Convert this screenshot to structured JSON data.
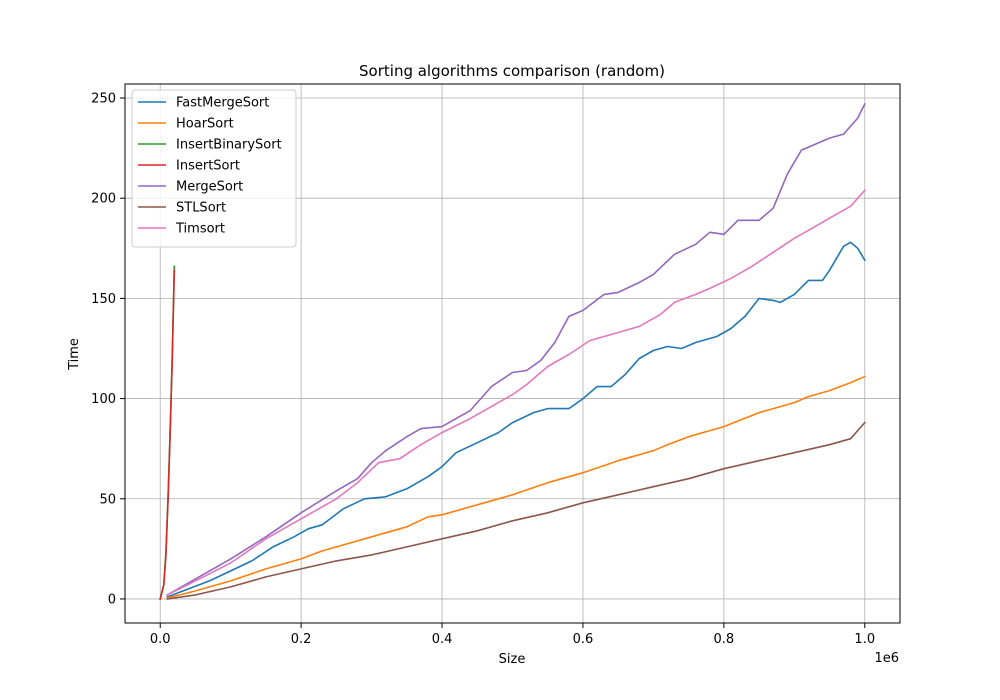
{
  "chart_data": {
    "type": "line",
    "title": "Sorting algorithms comparison (random)",
    "xlabel": "Size",
    "ylabel": "Time",
    "x_offset_label": "1e6",
    "xlim": [
      -50000,
      1050000
    ],
    "ylim": [
      -12,
      257
    ],
    "x_ticks": [
      0,
      200000,
      400000,
      600000,
      800000,
      1000000
    ],
    "x_tick_labels": [
      "0.0",
      "0.2",
      "0.4",
      "0.6",
      "0.8",
      "1.0"
    ],
    "y_ticks": [
      0,
      50,
      100,
      150,
      200,
      250
    ],
    "y_tick_labels": [
      "0",
      "50",
      "100",
      "150",
      "200",
      "250"
    ],
    "grid": true,
    "legend_position": "top-left",
    "series": [
      {
        "name": "FastMergeSort",
        "color": "#1f77b4",
        "points": [
          [
            10000,
            1
          ],
          [
            40000,
            5
          ],
          [
            70000,
            9
          ],
          [
            100000,
            14
          ],
          [
            130000,
            19
          ],
          [
            160000,
            26
          ],
          [
            190000,
            31
          ],
          [
            210000,
            35
          ],
          [
            230000,
            37
          ],
          [
            260000,
            45
          ],
          [
            290000,
            50
          ],
          [
            320000,
            51
          ],
          [
            350000,
            55
          ],
          [
            380000,
            61
          ],
          [
            400000,
            66
          ],
          [
            420000,
            73
          ],
          [
            450000,
            78
          ],
          [
            480000,
            83
          ],
          [
            500000,
            88
          ],
          [
            530000,
            93
          ],
          [
            550000,
            95
          ],
          [
            580000,
            95
          ],
          [
            600000,
            100
          ],
          [
            620000,
            106
          ],
          [
            640000,
            106
          ],
          [
            660000,
            112
          ],
          [
            680000,
            120
          ],
          [
            700000,
            124
          ],
          [
            720000,
            126
          ],
          [
            740000,
            125
          ],
          [
            760000,
            128
          ],
          [
            790000,
            131
          ],
          [
            810000,
            135
          ],
          [
            830000,
            141
          ],
          [
            850000,
            150
          ],
          [
            870000,
            149
          ],
          [
            880000,
            148
          ],
          [
            900000,
            152
          ],
          [
            920000,
            159
          ],
          [
            940000,
            159
          ],
          [
            950000,
            164
          ],
          [
            970000,
            176
          ],
          [
            980000,
            178
          ],
          [
            990000,
            175
          ],
          [
            1000000,
            169
          ]
        ]
      },
      {
        "name": "HoarSort",
        "color": "#ff7f0e",
        "points": [
          [
            10000,
            0.5
          ],
          [
            50000,
            4
          ],
          [
            100000,
            9
          ],
          [
            150000,
            15
          ],
          [
            200000,
            20
          ],
          [
            230000,
            24
          ],
          [
            260000,
            27
          ],
          [
            300000,
            31
          ],
          [
            350000,
            36
          ],
          [
            380000,
            41
          ],
          [
            400000,
            42
          ],
          [
            450000,
            47
          ],
          [
            470000,
            49
          ],
          [
            500000,
            52
          ],
          [
            550000,
            58
          ],
          [
            600000,
            63
          ],
          [
            650000,
            69
          ],
          [
            700000,
            74
          ],
          [
            720000,
            77
          ],
          [
            750000,
            81
          ],
          [
            780000,
            84
          ],
          [
            800000,
            86
          ],
          [
            850000,
            93
          ],
          [
            900000,
            98
          ],
          [
            920000,
            101
          ],
          [
            950000,
            104
          ],
          [
            980000,
            108
          ],
          [
            1000000,
            111
          ]
        ]
      },
      {
        "name": "InsertBinarySort",
        "color": "#2ca02c",
        "points": [
          [
            0,
            0
          ],
          [
            5000,
            7
          ],
          [
            8000,
            23
          ],
          [
            11000,
            50
          ],
          [
            14000,
            83
          ],
          [
            17000,
            120
          ],
          [
            20000,
            166
          ]
        ]
      },
      {
        "name": "InsertSort",
        "color": "#d62728",
        "points": [
          [
            0,
            0
          ],
          [
            5000,
            7
          ],
          [
            8000,
            22
          ],
          [
            11000,
            49
          ],
          [
            14000,
            82
          ],
          [
            17000,
            119
          ],
          [
            20000,
            164
          ]
        ]
      },
      {
        "name": "MergeSort",
        "color": "#9467bd",
        "points": [
          [
            10000,
            2
          ],
          [
            50000,
            10
          ],
          [
            100000,
            20
          ],
          [
            150000,
            31
          ],
          [
            200000,
            43
          ],
          [
            250000,
            54
          ],
          [
            280000,
            60
          ],
          [
            300000,
            68
          ],
          [
            320000,
            74
          ],
          [
            350000,
            81
          ],
          [
            370000,
            85
          ],
          [
            400000,
            86
          ],
          [
            440000,
            94
          ],
          [
            470000,
            106
          ],
          [
            500000,
            113
          ],
          [
            520000,
            114
          ],
          [
            540000,
            119
          ],
          [
            560000,
            128
          ],
          [
            580000,
            141
          ],
          [
            600000,
            144
          ],
          [
            630000,
            152
          ],
          [
            650000,
            153
          ],
          [
            680000,
            158
          ],
          [
            700000,
            162
          ],
          [
            730000,
            172
          ],
          [
            760000,
            177
          ],
          [
            780000,
            183
          ],
          [
            800000,
            182
          ],
          [
            820000,
            189
          ],
          [
            850000,
            189
          ],
          [
            870000,
            195
          ],
          [
            890000,
            212
          ],
          [
            910000,
            224
          ],
          [
            930000,
            227
          ],
          [
            950000,
            230
          ],
          [
            970000,
            232
          ],
          [
            990000,
            240
          ],
          [
            1000000,
            247
          ]
        ]
      },
      {
        "name": "STLSort",
        "color": "#8c564b",
        "points": [
          [
            10000,
            0
          ],
          [
            50000,
            2
          ],
          [
            100000,
            6
          ],
          [
            150000,
            11
          ],
          [
            200000,
            15
          ],
          [
            250000,
            19
          ],
          [
            300000,
            22
          ],
          [
            350000,
            26
          ],
          [
            400000,
            30
          ],
          [
            450000,
            34
          ],
          [
            500000,
            39
          ],
          [
            550000,
            43
          ],
          [
            600000,
            48
          ],
          [
            650000,
            52
          ],
          [
            700000,
            56
          ],
          [
            750000,
            60
          ],
          [
            800000,
            65
          ],
          [
            850000,
            69
          ],
          [
            900000,
            73
          ],
          [
            950000,
            77
          ],
          [
            980000,
            80
          ],
          [
            990000,
            84
          ],
          [
            1000000,
            88
          ]
        ]
      },
      {
        "name": "Timsort",
        "color": "#e377c2",
        "points": [
          [
            10000,
            2
          ],
          [
            50000,
            9
          ],
          [
            100000,
            18
          ],
          [
            150000,
            30
          ],
          [
            200000,
            40
          ],
          [
            250000,
            50
          ],
          [
            280000,
            58
          ],
          [
            310000,
            68
          ],
          [
            340000,
            70
          ],
          [
            370000,
            77
          ],
          [
            400000,
            83
          ],
          [
            440000,
            90
          ],
          [
            470000,
            96
          ],
          [
            500000,
            102
          ],
          [
            520000,
            107
          ],
          [
            550000,
            116
          ],
          [
            580000,
            122
          ],
          [
            610000,
            129
          ],
          [
            650000,
            133
          ],
          [
            680000,
            136
          ],
          [
            710000,
            142
          ],
          [
            730000,
            148
          ],
          [
            760000,
            152
          ],
          [
            780000,
            155
          ],
          [
            810000,
            160
          ],
          [
            840000,
            166
          ],
          [
            870000,
            173
          ],
          [
            900000,
            180
          ],
          [
            930000,
            186
          ],
          [
            950000,
            190
          ],
          [
            980000,
            196
          ],
          [
            1000000,
            204
          ]
        ]
      }
    ]
  }
}
